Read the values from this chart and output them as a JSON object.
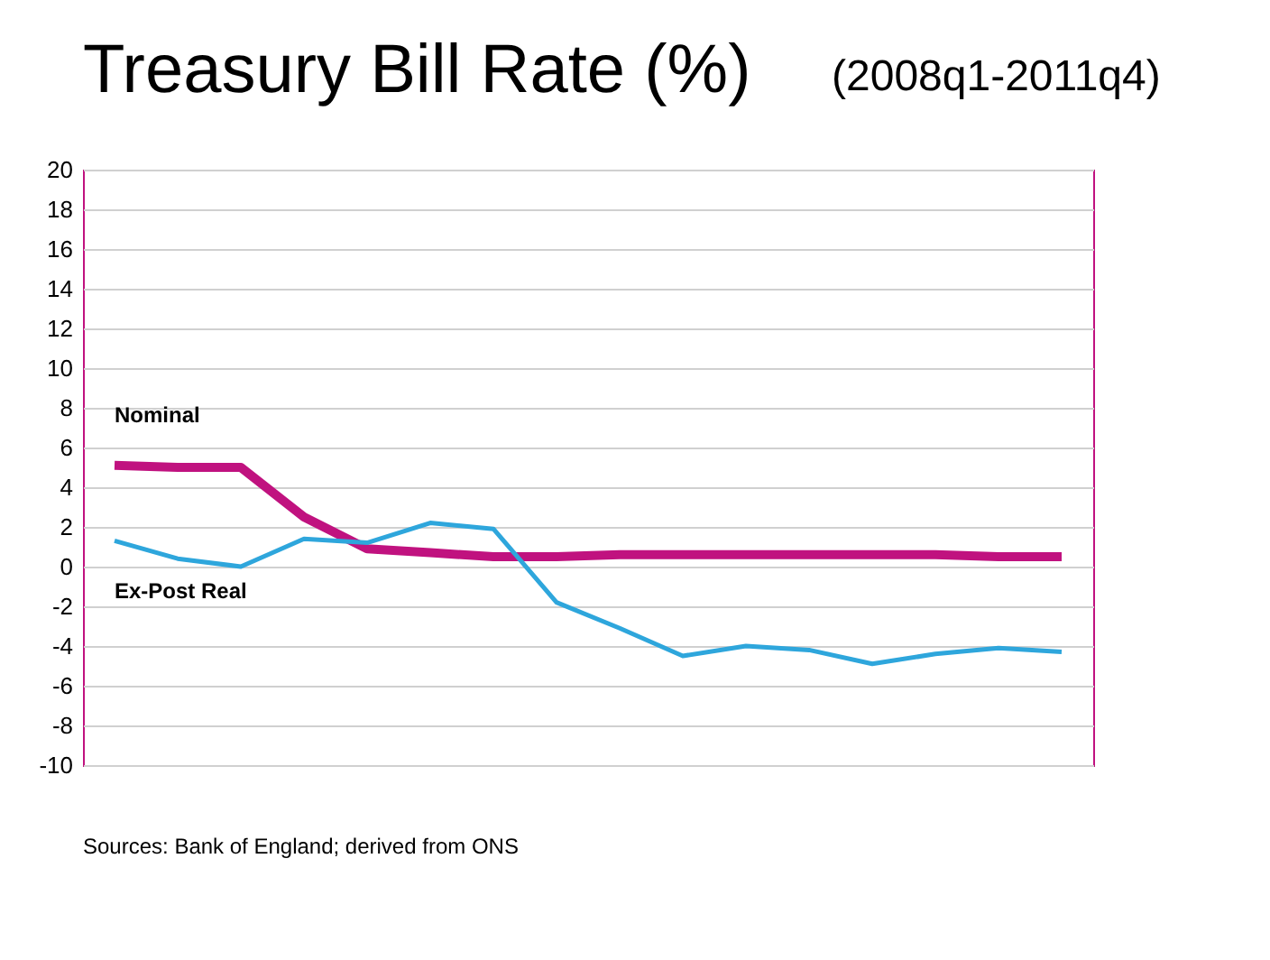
{
  "chart_data": {
    "type": "line",
    "title": "Treasury Bill Rate (%)",
    "subtitle": "(2008q1-2011q4)",
    "categories": [
      null,
      null,
      null,
      null,
      null,
      null,
      null,
      null,
      null,
      null,
      null,
      null,
      null,
      null,
      null,
      null
    ],
    "series": [
      {
        "name": "Nominal",
        "color": "#c0127f",
        "values": [
          5.1,
          5.0,
          5.0,
          2.5,
          0.9,
          0.7,
          0.5,
          0.5,
          0.6,
          0.6,
          0.6,
          0.6,
          0.6,
          0.6,
          0.5,
          0.5
        ]
      },
      {
        "name": "Ex-Post Real",
        "color": "#2ea6dc",
        "values": [
          1.3,
          0.4,
          0.0,
          1.4,
          1.2,
          2.2,
          1.9,
          -1.8,
          -3.1,
          -4.5,
          -4.0,
          -4.2,
          -4.9,
          -4.4,
          -4.1,
          -4.3
        ]
      }
    ],
    "ylim": [
      -10,
      20
    ],
    "yticks": [
      -10,
      -8,
      -6,
      -4,
      -2,
      0,
      2,
      4,
      6,
      8,
      10,
      12,
      14,
      16,
      18,
      20
    ],
    "grid": "y",
    "legend": false,
    "marker": "none",
    "line_style": "solid",
    "annotations": [
      "Sources:  Bank of England; derived from ONS"
    ]
  }
}
